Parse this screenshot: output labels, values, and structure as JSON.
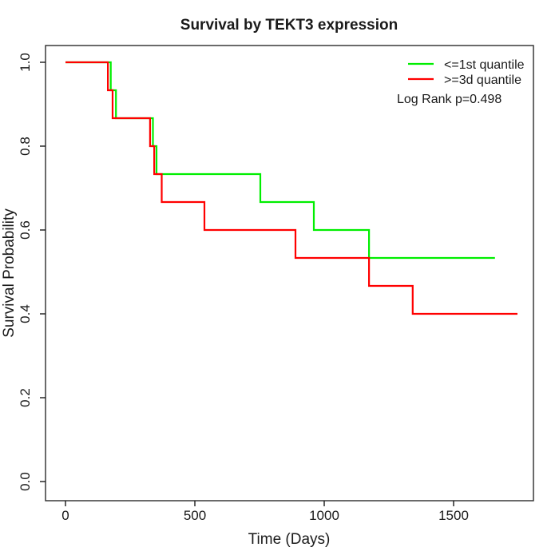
{
  "chart_data": {
    "type": "line",
    "subtype": "kaplan-meier-step-survival",
    "title": "Survival by TEKT3 expression",
    "xlabel": "Time (Days)",
    "ylabel": "Survival Probability",
    "xlim": [
      0,
      1750
    ],
    "ylim": [
      0.0,
      1.0
    ],
    "grid": false,
    "x_ticks": {
      "values": [
        0,
        500,
        1000,
        1500
      ],
      "labels": [
        "0",
        "500",
        "1000",
        "1500"
      ]
    },
    "y_ticks": {
      "values": [
        0.0,
        0.2,
        0.4,
        0.6,
        0.8,
        1.0
      ],
      "labels": [
        "0.0",
        "0.2",
        "0.4",
        "0.6",
        "0.8",
        "1.0"
      ]
    },
    "legend_position": "top-right",
    "series": [
      {
        "name": "<=1st quantile",
        "color": "#00ee00",
        "points": [
          [
            0,
            1.0
          ],
          [
            175,
            0.9333
          ],
          [
            195,
            0.8667
          ],
          [
            338,
            0.8
          ],
          [
            352,
            0.7333
          ],
          [
            753,
            0.6667
          ],
          [
            960,
            0.6
          ],
          [
            1173,
            0.5333
          ],
          [
            1660,
            0.5333
          ]
        ]
      },
      {
        "name": ">=3d quantile",
        "color": "#ff0000",
        "points": [
          [
            0,
            1.0
          ],
          [
            164,
            0.9333
          ],
          [
            182,
            0.8667
          ],
          [
            327,
            0.8
          ],
          [
            343,
            0.7333
          ],
          [
            372,
            0.6667
          ],
          [
            537,
            0.6
          ],
          [
            889,
            0.5333
          ],
          [
            1173,
            0.4667
          ],
          [
            1342,
            0.4
          ],
          [
            1747,
            0.4
          ]
        ]
      }
    ],
    "annotation": "Log Rank p=0.498"
  }
}
